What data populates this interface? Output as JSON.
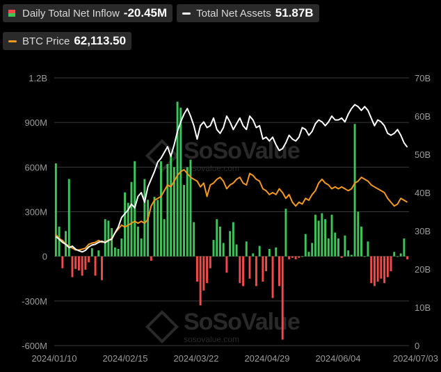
{
  "legend": {
    "inflow_label": "Daily Total Net Inflow",
    "inflow_value": "-20.45M",
    "assets_label": "Total Net Assets",
    "assets_value": "51.87B",
    "btc_label": "BTC Price",
    "btc_value": "62,113.50"
  },
  "watermark": {
    "brand": "SoSoValue",
    "url": "sosovalue.com"
  },
  "colors": {
    "positive_bar": "#3fc45a",
    "negative_bar": "#f04a4a",
    "assets_line": "#ffffff",
    "btc_line": "#f39a1e",
    "grid": "#3a3a3a",
    "axis_text": "#9a9a9a"
  },
  "chart_data": {
    "type": "bar+line",
    "x_tick_labels": [
      "2024/01/10",
      "2024/02/15",
      "2024/03/22",
      "2024/04/29",
      "2024/06/04",
      "2024/07/03"
    ],
    "left_axis": {
      "tick_labels": [
        "1.2B",
        "900M",
        "600M",
        "300M",
        "0",
        "-300M",
        "-600M"
      ],
      "ylim": [
        -600,
        1200
      ],
      "unit": "M"
    },
    "right_axis": {
      "tick_labels": [
        "70B",
        "60B",
        "50B",
        "40B",
        "30B",
        "20B",
        "10B",
        "0"
      ],
      "ylim": [
        0,
        70
      ],
      "unit": "B"
    },
    "grid": "horizontal",
    "series": [
      {
        "name": "Daily Total Net Inflow",
        "kind": "bar",
        "axis": "left",
        "values": [
          625,
          200,
          -80,
          170,
          520,
          -140,
          -85,
          -95,
          -130,
          -90,
          -40,
          55,
          -130,
          40,
          -160,
          250,
          240,
          190,
          60,
          50,
          120,
          430,
          360,
          500,
          640,
          200,
          120,
          520,
          380,
          -30,
          400,
          380,
          640,
          250,
          620,
          680,
          600,
          1040,
          1000,
          480,
          600,
          650,
          230,
          -170,
          -330,
          -230,
          -180,
          -80,
          110,
          250,
          200,
          90,
          -110,
          170,
          230,
          80,
          -180,
          -200,
          100,
          -150,
          20,
          -200,
          70,
          -170,
          -100,
          50,
          -280,
          60,
          -200,
          -560,
          320,
          -20,
          -10,
          -20,
          -10,
          0,
          150,
          30,
          90,
          280,
          240,
          290,
          250,
          120,
          280,
          160,
          120,
          -10,
          140,
          40,
          10,
          890,
          300,
          200,
          0,
          100,
          -180,
          -200,
          -170,
          -150,
          -180,
          -140,
          -100,
          30,
          0,
          20,
          120,
          -20
        ]
      },
      {
        "name": "Total Net Assets",
        "kind": "line",
        "axis": "right",
        "values": [
          28.5,
          27.8,
          27.0,
          26.5,
          25.6,
          26.0,
          25.2,
          24.8,
          24.5,
          24.9,
          25.8,
          26.3,
          26.5,
          27.0,
          27.3,
          26.9,
          27.5,
          27.8,
          29.5,
          31.0,
          33.5,
          34.5,
          35.5,
          37.0,
          36.0,
          39.0,
          40.0,
          37.5,
          41.5,
          43.5,
          45.5,
          48.0,
          49.0,
          50.5,
          52.0,
          49.5,
          52.5,
          56.0,
          58.5,
          60.5,
          62.0,
          60.0,
          57.5,
          54.0,
          57.5,
          58.5,
          57.0,
          57.5,
          59.5,
          56.5,
          55.5,
          57.0,
          60.0,
          58.5,
          56.5,
          58.0,
          59.5,
          57.5,
          56.5,
          60.0,
          59.0,
          57.0,
          57.5,
          54.0,
          54.5,
          53.5,
          54.5,
          52.5,
          51.0,
          51.5,
          53.0,
          55.0,
          54.0,
          53.5,
          54.5,
          57.0,
          56.5,
          55.0,
          56.0,
          58.0,
          59.0,
          58.5,
          57.5,
          58.5,
          60.0,
          59.0,
          59.0,
          59.5,
          58.5,
          60.5,
          62.0,
          63.0,
          62.5,
          61.5,
          62.5,
          61.5,
          59.5,
          57.5,
          59.0,
          58.5,
          57.5,
          55.5,
          55.0,
          55.5,
          56.5,
          55.0,
          53.0,
          51.87
        ]
      },
      {
        "name": "BTC Price",
        "kind": "line",
        "axis": "right",
        "values": [
          29.0,
          28.0,
          27.5,
          26.5,
          26.0,
          25.5,
          25.0,
          25.0,
          25.2,
          25.5,
          26.5,
          26.8,
          27.0,
          27.5,
          27.0,
          27.2,
          27.5,
          28.0,
          29.5,
          30.5,
          31.5,
          31.0,
          31.5,
          32.0,
          32.5,
          32.0,
          32.5,
          32.0,
          33.0,
          36.5,
          38.0,
          38.5,
          39.0,
          40.5,
          42.0,
          41.5,
          43.0,
          44.5,
          45.5,
          46.0,
          45.0,
          44.0,
          43.5,
          43.0,
          41.5,
          42.5,
          39.0,
          42.0,
          42.5,
          43.5,
          44.0,
          43.0,
          41.0,
          42.0,
          42.5,
          43.5,
          44.0,
          42.5,
          42.0,
          45.0,
          44.5,
          43.5,
          43.0,
          41.0,
          40.5,
          39.5,
          40.0,
          39.5,
          41.0,
          40.0,
          38.5,
          39.5,
          37.5,
          36.5,
          37.5,
          37.0,
          38.5,
          38.0,
          39.5,
          40.5,
          42.5,
          43.5,
          42.5,
          42.0,
          41.0,
          41.5,
          41.0,
          41.5,
          41.0,
          40.5,
          41.0,
          42.5,
          43.0,
          44.0,
          43.5,
          43.0,
          42.0,
          41.5,
          41.0,
          40.5,
          40.0,
          38.5,
          37.5,
          36.5,
          37.0,
          38.5,
          38.0,
          37.5
        ]
      }
    ]
  }
}
